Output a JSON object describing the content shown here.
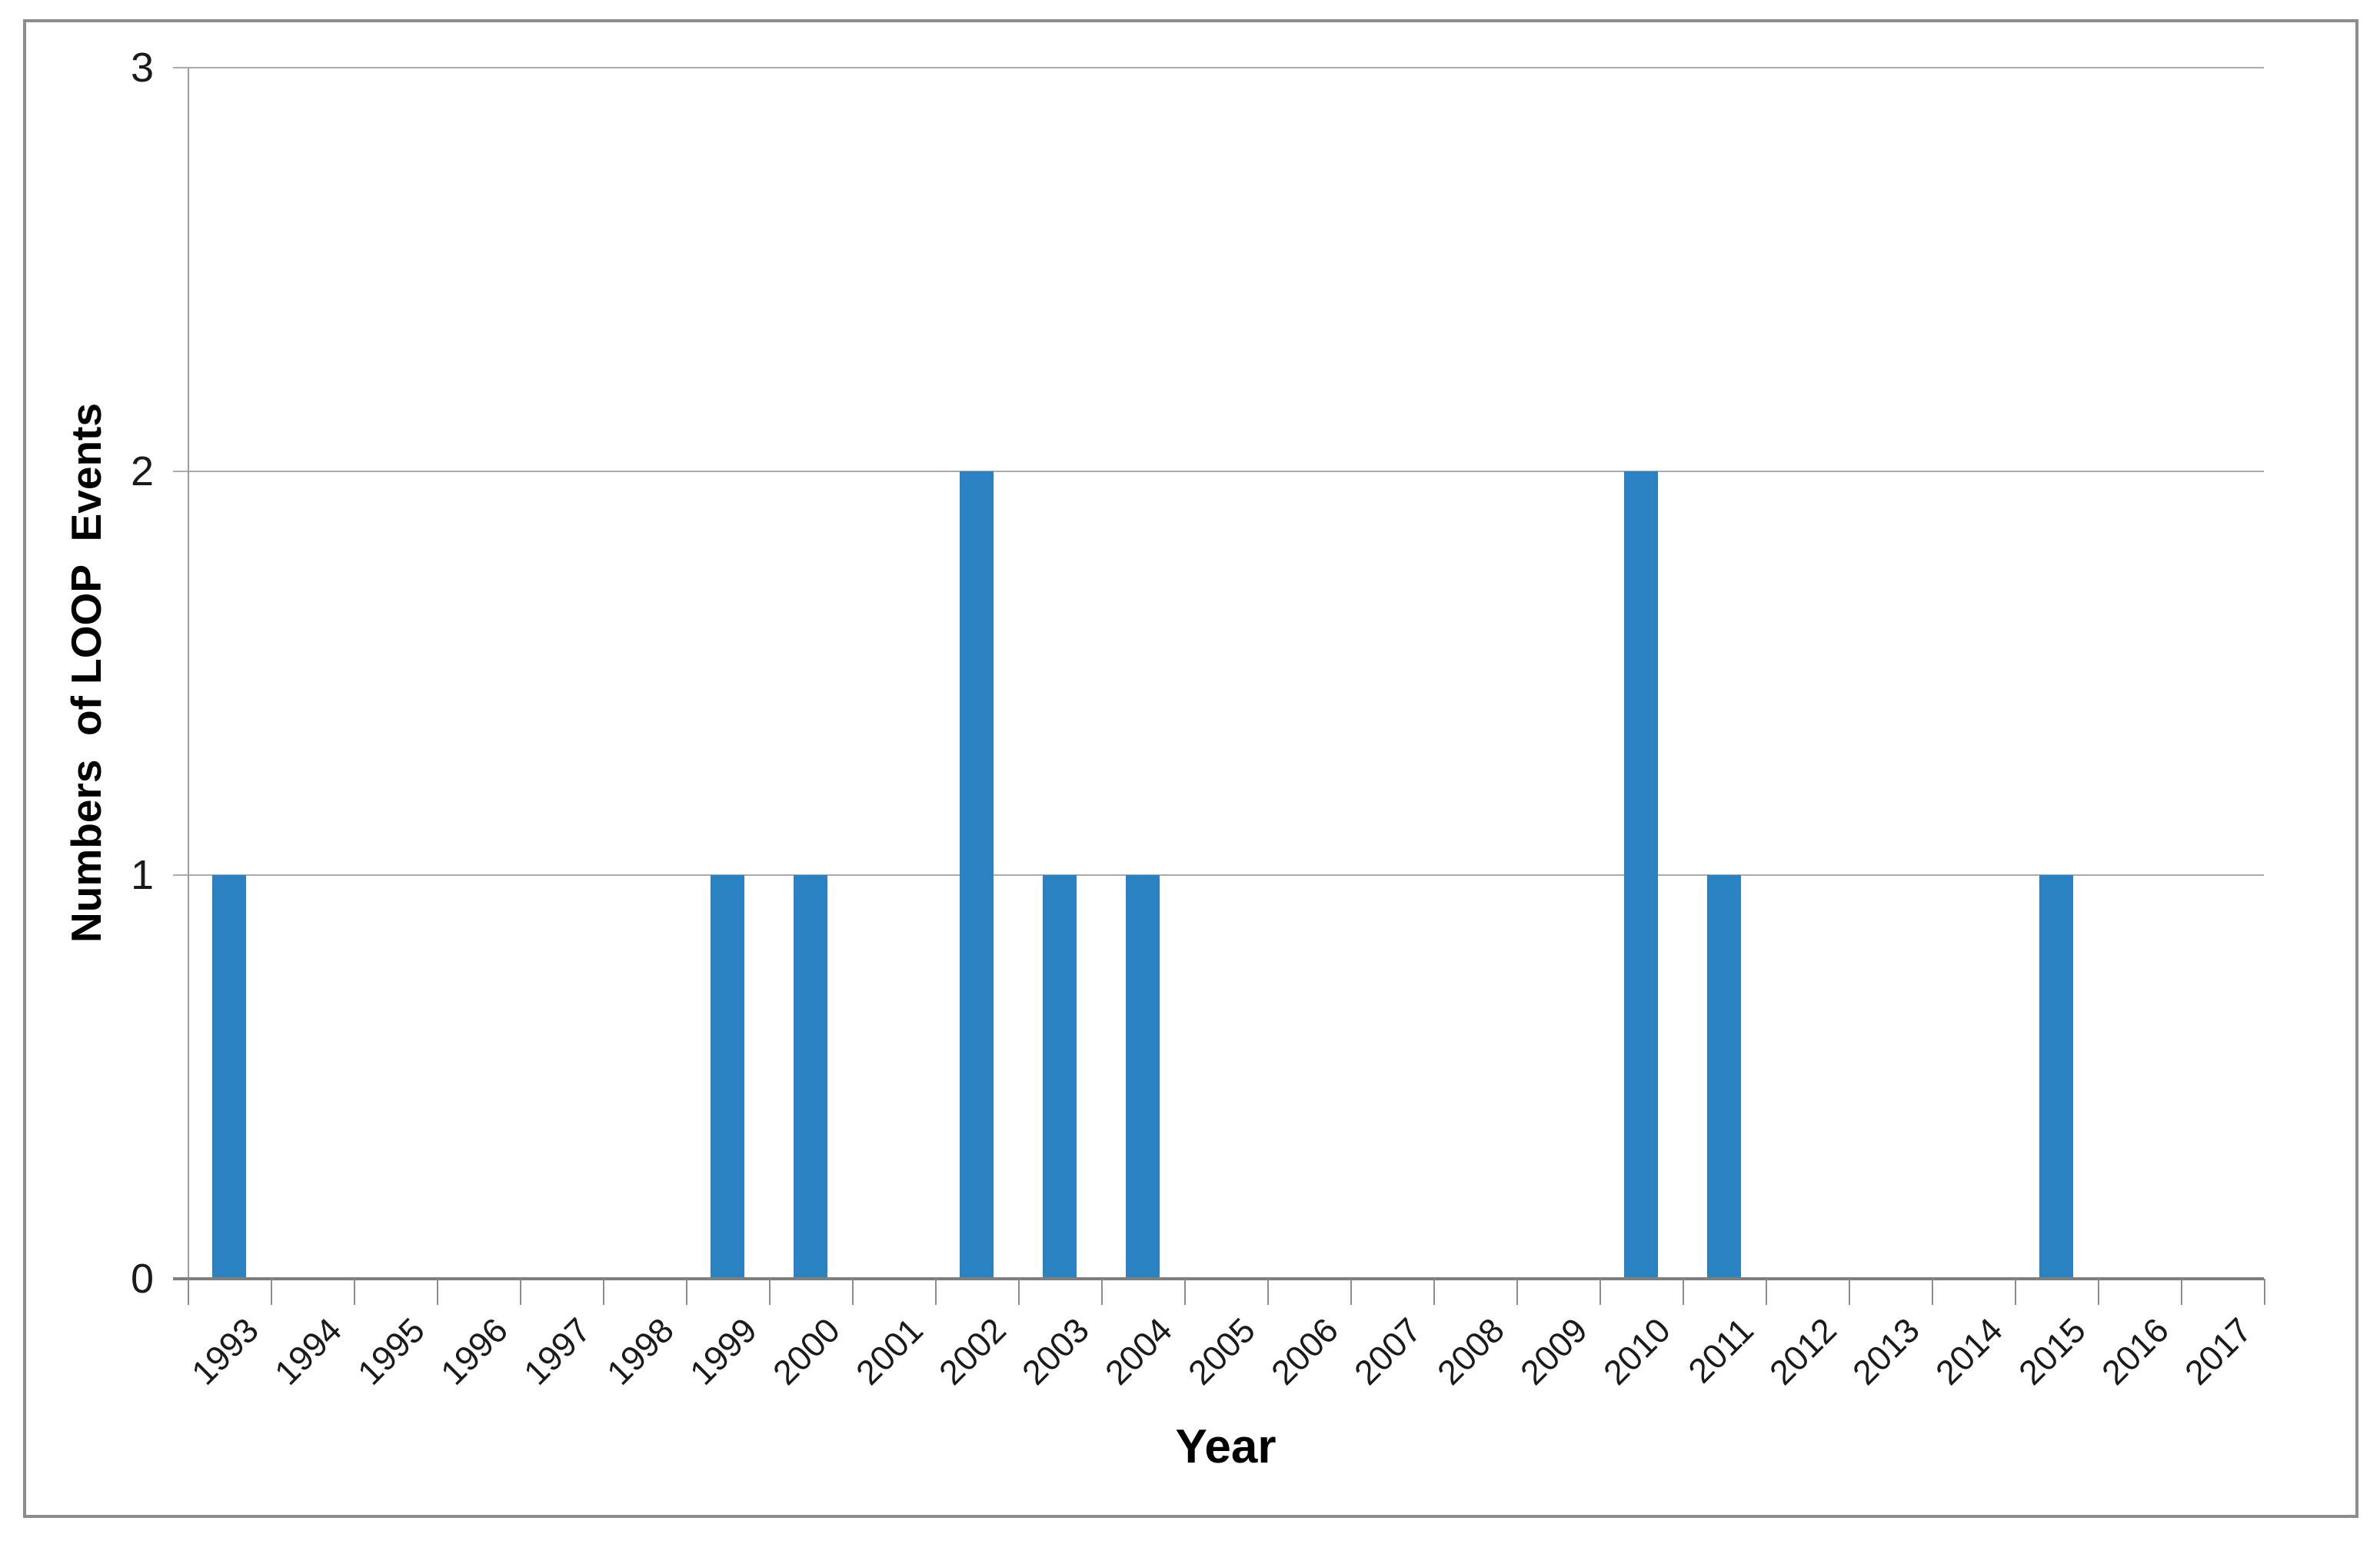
{
  "chart_data": {
    "type": "bar",
    "title": "",
    "categories": [
      "1993",
      "1994",
      "1995",
      "1996",
      "1997",
      "1998",
      "1999",
      "2000",
      "2001",
      "2002",
      "2003",
      "2004",
      "2005",
      "2006",
      "2007",
      "2008",
      "2009",
      "2010",
      "2011",
      "2012",
      "2013",
      "2014",
      "2015",
      "2016",
      "2017"
    ],
    "values": [
      1,
      0,
      0,
      0,
      0,
      0,
      1,
      1,
      0,
      2,
      1,
      1,
      0,
      0,
      0,
      0,
      0,
      2,
      1,
      0,
      0,
      0,
      1,
      0,
      0
    ],
    "xlabel": "Year",
    "ylabel": "Numbers  of LOOP  Events",
    "ylim": [
      0,
      3
    ],
    "yticks": [
      0,
      1,
      2,
      3
    ],
    "grid": "horizontal gridlines at 1,2,3",
    "legend_position": "none",
    "bar_color": "#2A82C3",
    "gridline_color": "#ABABAB",
    "axis_color": "#7F7F7F",
    "frame_color": "#8C8C8C",
    "x_label_rotation_deg": 45
  }
}
